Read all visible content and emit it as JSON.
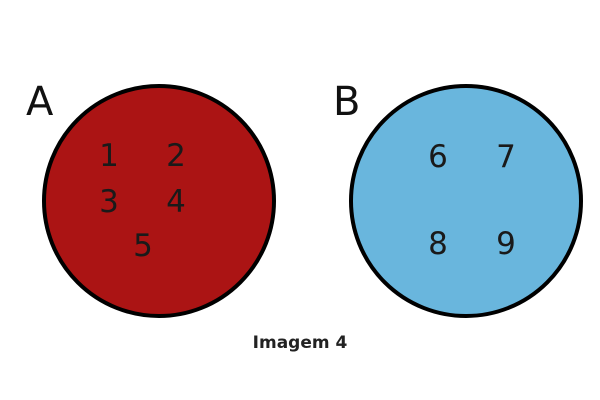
{
  "sets": [
    {
      "label": "A",
      "fill": "#ab1414",
      "stroke": "#000000",
      "elements": [
        "1",
        "2",
        "3",
        "4",
        "5"
      ]
    },
    {
      "label": "B",
      "fill": "#69b6dd",
      "stroke": "#000000",
      "elements": [
        "6",
        "7",
        "8",
        "9"
      ]
    }
  ],
  "caption": "Imagem 4"
}
